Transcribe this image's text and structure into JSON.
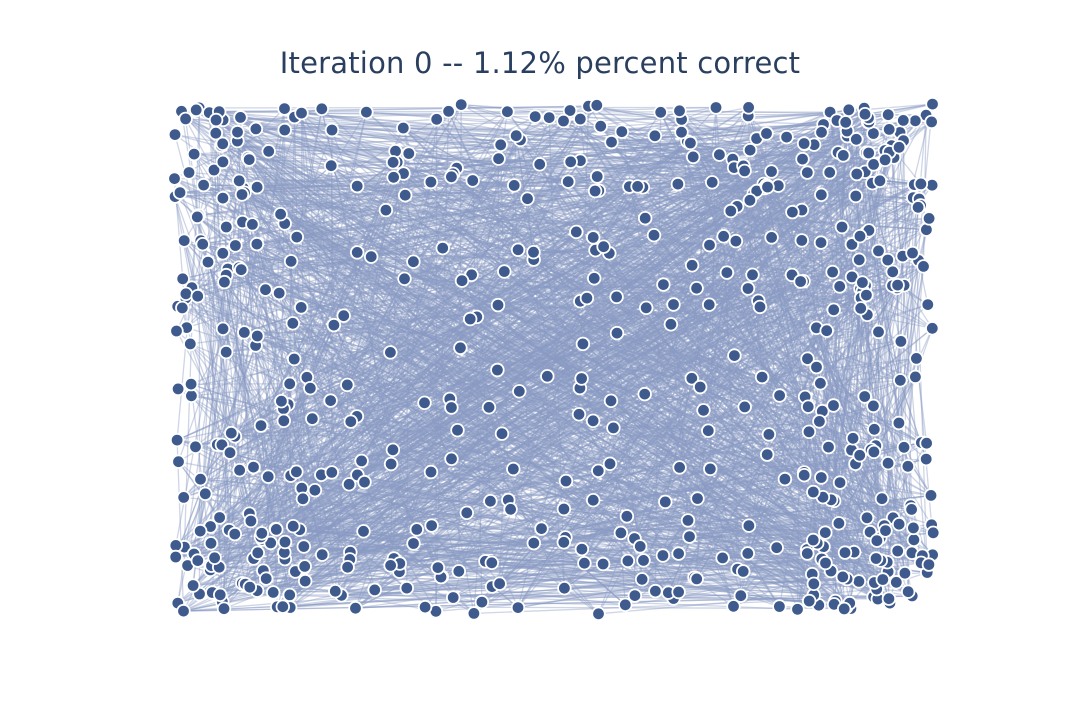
{
  "figure": {
    "title": "Iteration 0 -- 1.12% percent correct"
  },
  "graph": {
    "layout": "random",
    "node_count": 620,
    "edge_count": 2600,
    "random_seed": 12345
  },
  "colors": {
    "background": "#ffffff",
    "title": "#2a3f5f",
    "edge": "#8a9cc4",
    "edge_opacity": 0.42,
    "node_fill": "#3f5a8c",
    "node_stroke": "#ffffff"
  }
}
